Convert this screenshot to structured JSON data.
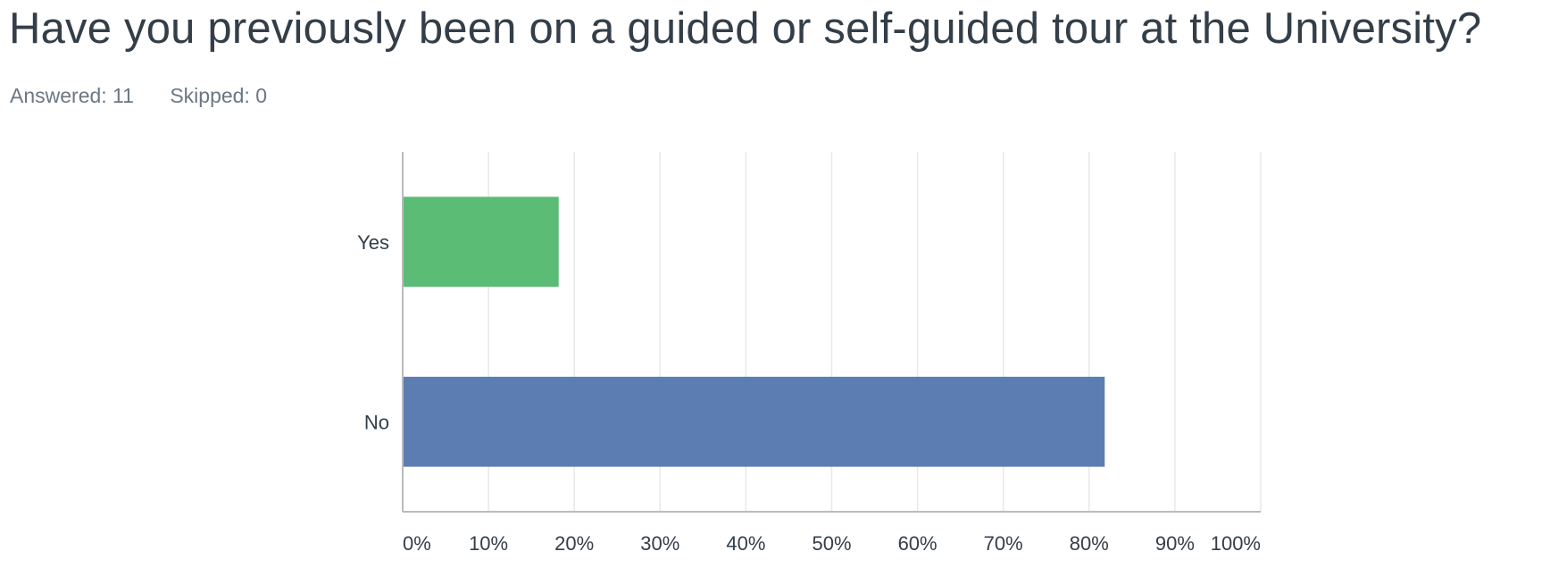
{
  "question": {
    "title": "Have you previously been on a guided or self-guided tour at the University?",
    "answered_label": "Answered: 11",
    "skipped_label": "Skipped: 0"
  },
  "chart_data": {
    "type": "bar",
    "orientation": "horizontal",
    "categories": [
      "Yes",
      "No"
    ],
    "values": [
      18.18,
      81.82
    ],
    "colors": [
      "#5bbc75",
      "#5b7db1"
    ],
    "xlim": [
      0,
      100
    ],
    "xticks": [
      "0%",
      "10%",
      "20%",
      "30%",
      "40%",
      "50%",
      "60%",
      "70%",
      "80%",
      "90%",
      "100%"
    ],
    "grid": true,
    "legend": "none"
  }
}
